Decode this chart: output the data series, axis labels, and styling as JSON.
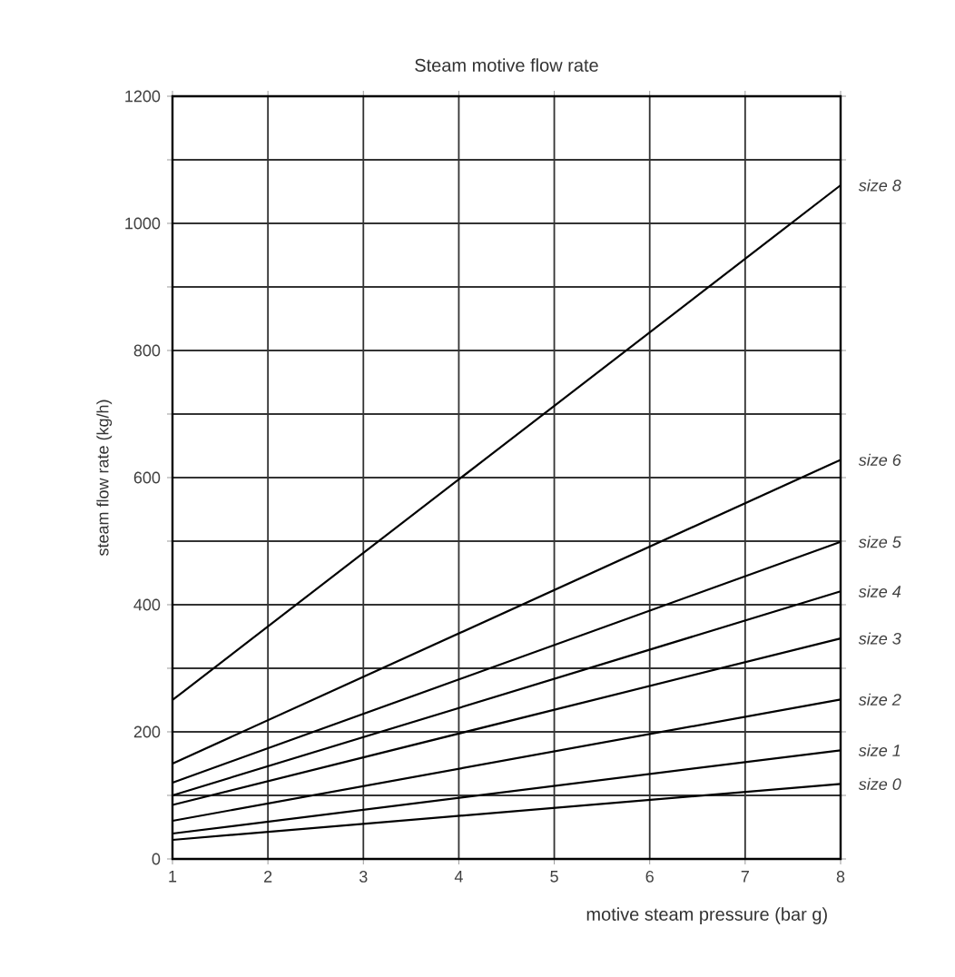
{
  "chart_data": {
    "type": "line",
    "title": "Steam motive  flow rate",
    "xlabel": "motive steam pressure (bar g)",
    "ylabel": "steam flow rate (kg/h)",
    "x": [
      1,
      8
    ],
    "xlim": [
      1,
      8
    ],
    "xticks": [
      1,
      2,
      3,
      4,
      5,
      6,
      7,
      8
    ],
    "ylim": [
      0,
      1200
    ],
    "yticks": [
      0,
      {
        "value": 100,
        "label": null
      },
      200,
      {
        "value": 300,
        "label": null
      },
      400,
      {
        "value": 500,
        "label": null
      },
      600,
      {
        "value": 700,
        "label": null
      },
      800,
      {
        "value": 900,
        "label": null
      },
      1000,
      {
        "value": 1100,
        "label": null
      },
      1200
    ],
    "grid": true,
    "legend": "right",
    "marker": "none",
    "line_style": "solid",
    "series": [
      {
        "name": "size 8",
        "color": "#000000",
        "values": [
          250,
          1060
        ]
      },
      {
        "name": "size 6",
        "color": "#000000",
        "values": [
          150,
          628
        ]
      },
      {
        "name": "size 5",
        "color": "#000000",
        "values": [
          120,
          499
        ]
      },
      {
        "name": "size 4",
        "color": "#000000",
        "values": [
          100,
          421
        ]
      },
      {
        "name": "size 3",
        "color": "#000000",
        "values": [
          85,
          347
        ]
      },
      {
        "name": "size 2",
        "color": "#000000",
        "values": [
          60,
          251
        ]
      },
      {
        "name": "size 1",
        "color": "#000000",
        "values": [
          40,
          171
        ]
      },
      {
        "name": "size 0",
        "color": "#000000",
        "values": [
          30,
          118
        ]
      }
    ]
  }
}
